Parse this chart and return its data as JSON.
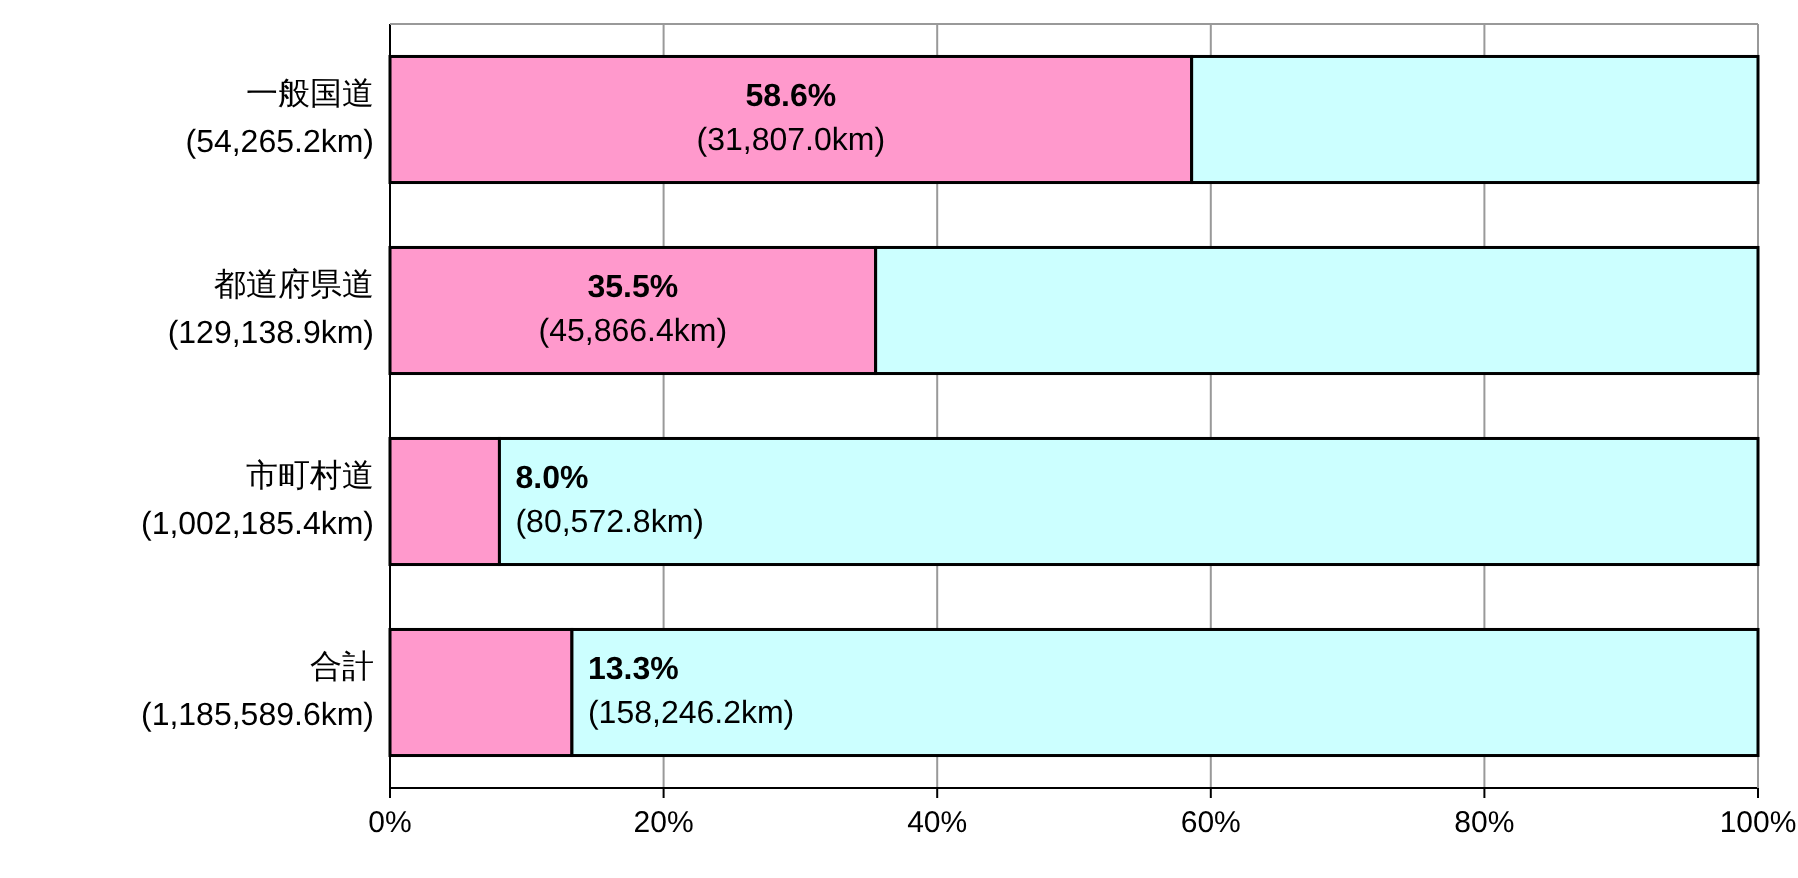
{
  "chart_data": {
    "type": "bar",
    "orientation": "horizontal",
    "stacked": true,
    "categories": [
      "一般国道\n(54,265.2km)",
      "都道府県道\n(129,138.9km)",
      "市町村道\n(1,002,185.4km)",
      "合計\n(1,185,589.6km)"
    ],
    "series": [
      {
        "color": "#ff99cc",
        "values": [
          58.6,
          35.5,
          8.0,
          13.3
        ],
        "value_labels": [
          "58.6%\n(31,807.0km)",
          "35.5%\n(45,866.4km)",
          "8.0%\n(80,572.8km)",
          "13.3%\n(158,246.2km)"
        ]
      },
      {
        "color": "#ccffff",
        "values": [
          41.4,
          64.5,
          92.0,
          86.7
        ]
      }
    ],
    "xlim": [
      0,
      100
    ],
    "xticks": [
      {
        "value": 0,
        "label": "0%"
      },
      {
        "value": 20,
        "label": "20%"
      },
      {
        "value": 40,
        "label": "40%"
      },
      {
        "value": 60,
        "label": "60%"
      },
      {
        "value": 80,
        "label": "80%"
      },
      {
        "value": 100,
        "label": "100%"
      }
    ],
    "grid": "x"
  }
}
